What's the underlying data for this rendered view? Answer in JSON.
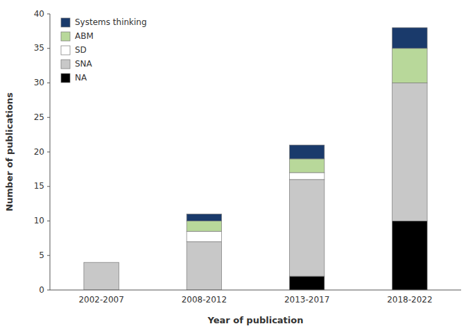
{
  "chart_data": {
    "type": "bar",
    "stacked": true,
    "xlabel": "Year of publication",
    "ylabel": "Number of publications",
    "categories": [
      "2002-2007",
      "2008-2012",
      "2013-2017",
      "2018-2022"
    ],
    "series": [
      {
        "name": "NA",
        "color": "#000000",
        "values": [
          0,
          0,
          2,
          10
        ]
      },
      {
        "name": "SNA",
        "color": "#c8c8c8",
        "values": [
          4,
          7,
          14,
          20
        ]
      },
      {
        "name": "SD",
        "color": "#ffffff",
        "values": [
          0,
          1.5,
          1,
          0
        ]
      },
      {
        "name": "ABM",
        "color": "#b8d89a",
        "values": [
          0,
          1.5,
          2,
          5
        ]
      },
      {
        "name": "Systems thinking",
        "color": "#1a3a6b",
        "values": [
          0,
          1,
          2,
          3
        ]
      }
    ],
    "ylim": [
      0,
      40
    ],
    "yticks": [
      0,
      5,
      10,
      15,
      20,
      25,
      30,
      35,
      40
    ],
    "grid": false,
    "legend": "upper-left"
  }
}
